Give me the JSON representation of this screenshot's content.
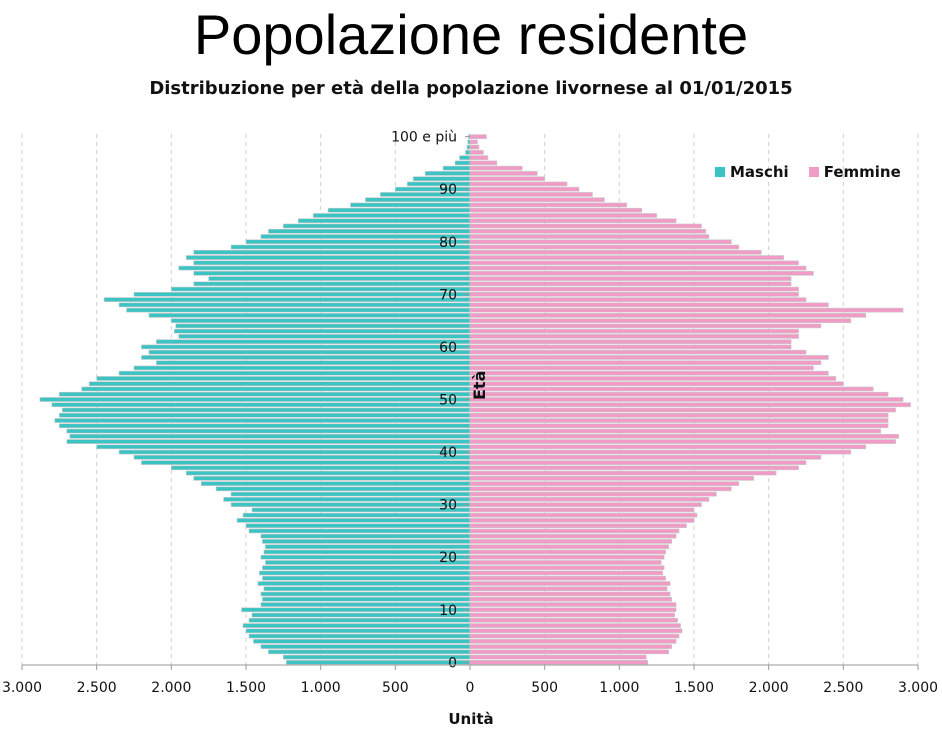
{
  "page": {
    "title": "Popolazione residente",
    "subtitle": "Distribuzione per età della popolazione livornese al 01/01/2015"
  },
  "colors": {
    "male": "#3cc3c3",
    "female": "#f19cc6"
  },
  "chart_data": {
    "type": "bar",
    "orientation": "horizontal-pyramid",
    "title": "Distribuzione per età della popolazione livornese al 01/01/2015",
    "xlabel": "Unità",
    "ylabel": "Età",
    "xlim": [
      -3000,
      3000
    ],
    "x_ticks": [
      "3.000",
      "2.500",
      "2.000",
      "1.500",
      "1.000",
      "500",
      "0",
      "500",
      "1.000",
      "1.500",
      "2.000",
      "2.500",
      "3.000"
    ],
    "y_ticks": [
      "0",
      "10",
      "20",
      "30",
      "40",
      "50",
      "60",
      "70",
      "80",
      "90",
      "100 e più"
    ],
    "legend_position": "top-right",
    "grid": "vertical-dashed",
    "categories_age": [
      0,
      1,
      2,
      3,
      4,
      5,
      6,
      7,
      8,
      9,
      10,
      11,
      12,
      13,
      14,
      15,
      16,
      17,
      18,
      19,
      20,
      21,
      22,
      23,
      24,
      25,
      26,
      27,
      28,
      29,
      30,
      31,
      32,
      33,
      34,
      35,
      36,
      37,
      38,
      39,
      40,
      41,
      42,
      43,
      44,
      45,
      46,
      47,
      48,
      49,
      50,
      51,
      52,
      53,
      54,
      55,
      56,
      57,
      58,
      59,
      60,
      61,
      62,
      63,
      64,
      65,
      66,
      67,
      68,
      69,
      70,
      71,
      72,
      73,
      74,
      75,
      76,
      77,
      78,
      79,
      80,
      81,
      82,
      83,
      84,
      85,
      86,
      87,
      88,
      89,
      90,
      91,
      92,
      93,
      94,
      95,
      96,
      97,
      98,
      99,
      "100 e più"
    ],
    "series": [
      {
        "name": "Maschi",
        "values": [
          1230,
          1250,
          1350,
          1400,
          1450,
          1480,
          1500,
          1520,
          1480,
          1460,
          1530,
          1400,
          1390,
          1400,
          1380,
          1420,
          1390,
          1410,
          1390,
          1370,
          1400,
          1380,
          1370,
          1390,
          1400,
          1480,
          1500,
          1560,
          1520,
          1460,
          1600,
          1650,
          1600,
          1700,
          1800,
          1850,
          1900,
          2000,
          2200,
          2250,
          2350,
          2500,
          2700,
          2680,
          2700,
          2750,
          2780,
          2750,
          2730,
          2800,
          2880,
          2750,
          2600,
          2550,
          2500,
          2350,
          2250,
          2100,
          2200,
          2150,
          2200,
          2100,
          1950,
          1980,
          1970,
          2000,
          2150,
          2300,
          2350,
          2450,
          2250,
          2000,
          1850,
          1750,
          1850,
          1950,
          1850,
          1900,
          1850,
          1600,
          1500,
          1400,
          1350,
          1250,
          1150,
          1050,
          950,
          800,
          700,
          600,
          500,
          420,
          380,
          300,
          180,
          100,
          70,
          30,
          20,
          15,
          10
        ]
      },
      {
        "name": "Femmine",
        "values": [
          1190,
          1180,
          1330,
          1350,
          1380,
          1400,
          1420,
          1410,
          1390,
          1370,
          1380,
          1380,
          1350,
          1340,
          1320,
          1340,
          1310,
          1290,
          1300,
          1280,
          1300,
          1310,
          1330,
          1350,
          1380,
          1400,
          1450,
          1500,
          1520,
          1500,
          1550,
          1600,
          1650,
          1750,
          1800,
          1900,
          2050,
          2200,
          2250,
          2350,
          2550,
          2650,
          2850,
          2870,
          2750,
          2800,
          2800,
          2800,
          2850,
          2950,
          2900,
          2800,
          2700,
          2500,
          2450,
          2400,
          2300,
          2350,
          2400,
          2250,
          2150,
          2150,
          2200,
          2200,
          2350,
          2550,
          2650,
          2900,
          2400,
          2250,
          2200,
          2200,
          2150,
          2150,
          2300,
          2250,
          2200,
          2100,
          1950,
          1800,
          1750,
          1600,
          1580,
          1550,
          1380,
          1250,
          1150,
          1050,
          900,
          820,
          730,
          650,
          500,
          450,
          350,
          180,
          120,
          90,
          60,
          50,
          110
        ]
      }
    ]
  }
}
